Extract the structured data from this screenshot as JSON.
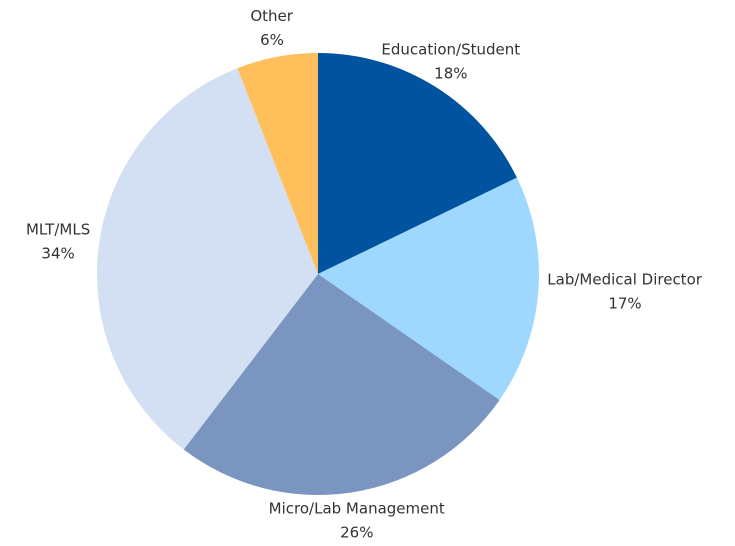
{
  "chart_data": {
    "type": "pie",
    "categories": [
      "Education/Student",
      "Lab/Medical Director",
      "Micro/Lab Management",
      "MLT/MLS",
      "Other"
    ],
    "values": [
      18,
      17,
      26,
      34,
      6
    ],
    "value_labels": [
      "18%",
      "17%",
      "26%",
      "34%",
      "6%"
    ],
    "colors": [
      "#00549f",
      "#9fd8ff",
      "#7a96c0",
      "#d3dff2",
      "#ffbf5a"
    ]
  }
}
